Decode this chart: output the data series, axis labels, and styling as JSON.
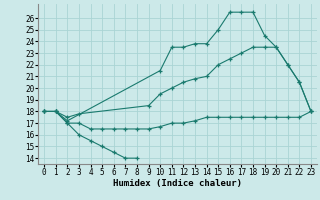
{
  "title": "",
  "xlabel": "Humidex (Indice chaleur)",
  "xlim": [
    -0.5,
    23.5
  ],
  "ylim": [
    13.5,
    27.2
  ],
  "yticks": [
    14,
    15,
    16,
    17,
    18,
    19,
    20,
    21,
    22,
    23,
    24,
    25,
    26
  ],
  "xticks": [
    0,
    1,
    2,
    3,
    4,
    5,
    6,
    7,
    8,
    9,
    10,
    11,
    12,
    13,
    14,
    15,
    16,
    17,
    18,
    19,
    20,
    21,
    22,
    23
  ],
  "bg_color": "#cce9e9",
  "line_color": "#1a7a6e",
  "grid_color": "#aad4d4",
  "s1x": [
    0,
    1,
    2,
    3,
    4,
    5,
    6,
    7,
    8
  ],
  "s1y": [
    18,
    18,
    17,
    16,
    15.5,
    15,
    14.5,
    14,
    14
  ],
  "s2x": [
    0,
    1,
    2,
    3,
    4,
    5,
    6,
    7,
    8,
    9,
    10,
    11,
    12,
    13,
    14,
    15,
    16,
    17,
    18,
    19,
    20,
    21,
    22,
    23
  ],
  "s2y": [
    18,
    18,
    17,
    17,
    16.5,
    16.5,
    16.5,
    16.5,
    16.5,
    16.5,
    16.7,
    17.0,
    17.0,
    17.2,
    17.5,
    17.5,
    17.5,
    17.5,
    17.5,
    17.5,
    17.5,
    17.5,
    17.5,
    18
  ],
  "s3x": [
    0,
    1,
    2,
    3,
    9,
    10,
    11,
    12,
    13,
    14,
    15,
    16,
    17,
    18,
    19,
    20,
    21,
    22,
    23
  ],
  "s3y": [
    18,
    18,
    17.5,
    17.8,
    18.5,
    19.5,
    20.0,
    20.5,
    20.8,
    21.0,
    22.0,
    22.5,
    23.0,
    23.5,
    23.5,
    23.5,
    22.0,
    20.5,
    18
  ],
  "s4x": [
    0,
    1,
    2,
    10,
    11,
    12,
    13,
    14,
    15,
    16,
    17,
    18,
    19,
    20,
    21,
    22,
    23
  ],
  "s4y": [
    18,
    18,
    17.2,
    21.5,
    23.5,
    23.5,
    23.8,
    23.8,
    25.0,
    26.5,
    26.5,
    26.5,
    24.5,
    23.5,
    22.0,
    20.5,
    18
  ]
}
